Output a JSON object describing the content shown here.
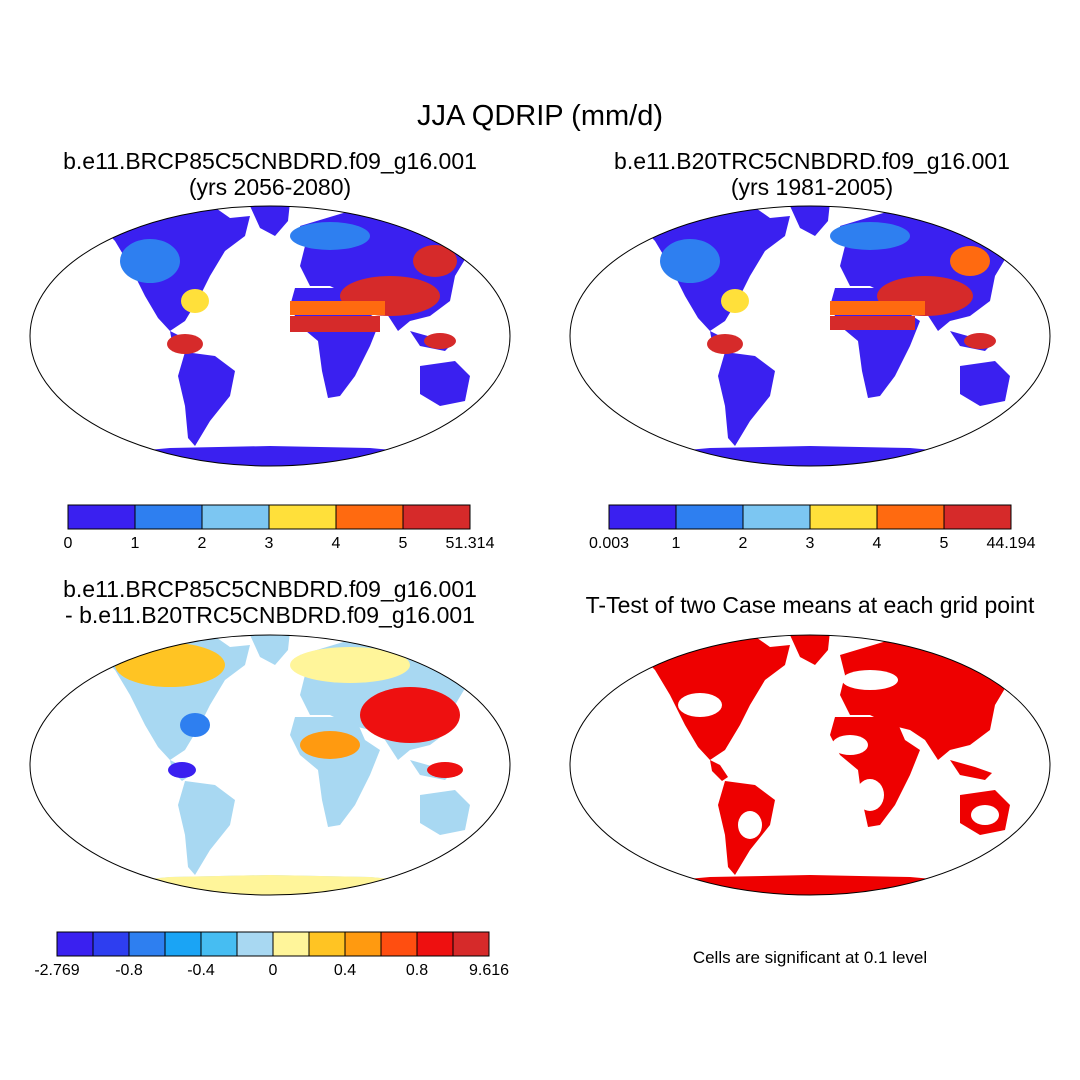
{
  "title": "JJA QDRIP (mm/d)",
  "panels": [
    {
      "id": "case",
      "title_line1": "b.e11.BRCP85C5CNBDRD.f09_g16.001",
      "title_line2": "(yrs 2056-2080)"
    },
    {
      "id": "control",
      "title_line1": "b.e11.B20TRC5CNBDRD.f09_g16.001",
      "title_line2": "(yrs 1981-2005)"
    },
    {
      "id": "difference",
      "title_line1": "b.e11.BRCP85C5CNBDRD.f09_g16.001",
      "title_line2": "- b.e11.B20TRC5CNBDRD.f09_g16.001"
    },
    {
      "id": "ttest",
      "title_line1": "T-Test of two Case means at each grid point",
      "title_line2": ""
    }
  ],
  "colorbars": {
    "case": {
      "colors": [
        "#3a20f0",
        "#2e7ff0",
        "#7cc6f2",
        "#ffe03a",
        "#ff6a10",
        "#d62a2a"
      ],
      "labels": [
        "0",
        "1",
        "2",
        "3",
        "4",
        "5",
        "51.314"
      ]
    },
    "control": {
      "colors": [
        "#3a20f0",
        "#2e7ff0",
        "#7cc6f2",
        "#ffe03a",
        "#ff6a10",
        "#d62a2a"
      ],
      "labels": [
        "0.003",
        "1",
        "2",
        "3",
        "4",
        "5",
        "44.194"
      ]
    },
    "difference": {
      "colors": [
        "#3a20f0",
        "#2e3ef0",
        "#2e7ff0",
        "#1aa4f5",
        "#46bdf2",
        "#a8d8f2",
        "#fff59a",
        "#ffc423",
        "#ff9a10",
        "#ff4e10",
        "#ee1010",
        "#d62a2a"
      ],
      "labels": [
        "-2.769",
        "-0.8",
        "-0.4",
        "0",
        "0.4",
        "0.8",
        "9.616"
      ]
    }
  },
  "significance_note": "Cells are significant at 0.1 level",
  "colors": {
    "significant": "#ee0000",
    "coast": "#000000",
    "background": "#ffffff"
  }
}
